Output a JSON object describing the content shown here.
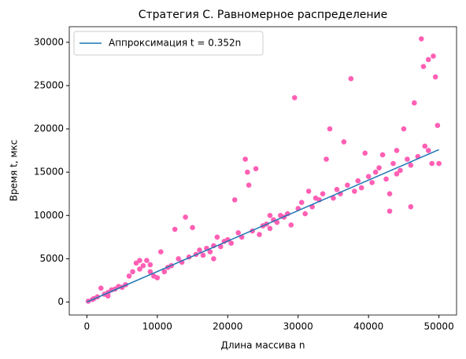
{
  "chart_data": {
    "type": "scatter",
    "title": "Стратегия C. Равномерное распределение",
    "x_label": "Длина массива n",
    "y_label": "Время t, мкс",
    "xlim": [
      -2500,
      52500
    ],
    "ylim": [
      -1500,
      31800
    ],
    "xticks": [
      0,
      10000,
      20000,
      30000,
      40000,
      50000
    ],
    "yticks": [
      0,
      5000,
      10000,
      15000,
      20000,
      25000,
      30000
    ],
    "legend": "upper left",
    "series": [
      {
        "name": "Аппроксимация t = 0.352n",
        "type": "line",
        "color": "#1f77b4",
        "x": [
          0,
          50000
        ],
        "values": [
          0,
          17600
        ]
      },
      {
        "type": "scatter",
        "color": "#ff5fb4",
        "x": [
          200,
          800,
          1500,
          2000,
          2500,
          3000,
          3500,
          4000,
          4500,
          5000,
          5500,
          6000,
          6500,
          7000,
          7500,
          8000,
          8500,
          9000,
          9500,
          10000,
          10500,
          11000,
          11500,
          12000,
          12500,
          13000,
          13500,
          14000,
          14500,
          15000,
          15500,
          16000,
          16500,
          17000,
          17500,
          18000,
          18500,
          19000,
          19500,
          20000,
          20500,
          21000,
          21500,
          22000,
          22500,
          22800,
          23000,
          23500,
          24000,
          24500,
          25000,
          25500,
          26000,
          26500,
          27000,
          27500,
          28000,
          28500,
          29000,
          29500,
          30000,
          30500,
          31000,
          31500,
          32000,
          32500,
          33000,
          33500,
          34000,
          34500,
          35000,
          35500,
          36000,
          36500,
          37000,
          37500,
          38000,
          38500,
          39000,
          39500,
          40000,
          40500,
          41000,
          41500,
          42000,
          42500,
          43000,
          43500,
          44000,
          44500,
          45000,
          45500,
          46000,
          46500,
          47000,
          47500,
          47800,
          48000,
          48500,
          49000,
          49200,
          49500,
          49800,
          50000,
          46000,
          43000,
          26000,
          18000,
          9000,
          7500,
          3000,
          1000,
          44000,
          48500
        ],
        "values": [
          100,
          300,
          600,
          1600,
          900,
          1100,
          1400,
          1500,
          1800,
          1700,
          2000,
          3000,
          3500,
          4500,
          3800,
          4200,
          4800,
          3500,
          3000,
          2800,
          5800,
          3500,
          4000,
          4200,
          8400,
          5000,
          4600,
          9800,
          5200,
          8600,
          5500,
          6000,
          5400,
          6200,
          5800,
          6500,
          7500,
          6400,
          7000,
          7200,
          6800,
          11800,
          8000,
          7500,
          16500,
          15000,
          13500,
          8200,
          15400,
          7800,
          8800,
          9000,
          8500,
          9500,
          9200,
          10000,
          9800,
          10200,
          8900,
          23600,
          10800,
          11500,
          10200,
          12800,
          11000,
          12000,
          11800,
          12500,
          16500,
          20000,
          12000,
          13000,
          12500,
          18500,
          13500,
          25800,
          12800,
          14000,
          13200,
          17200,
          14500,
          13800,
          15000,
          15500,
          17000,
          14200,
          12500,
          16000,
          14800,
          15200,
          20000,
          16500,
          15800,
          23000,
          16800,
          30400,
          27200,
          18000,
          28000,
          16000,
          28400,
          26000,
          20400,
          16000,
          11000,
          10500,
          10000,
          5000,
          4300,
          4800,
          700,
          400,
          17500,
          17500
        ]
      }
    ]
  }
}
